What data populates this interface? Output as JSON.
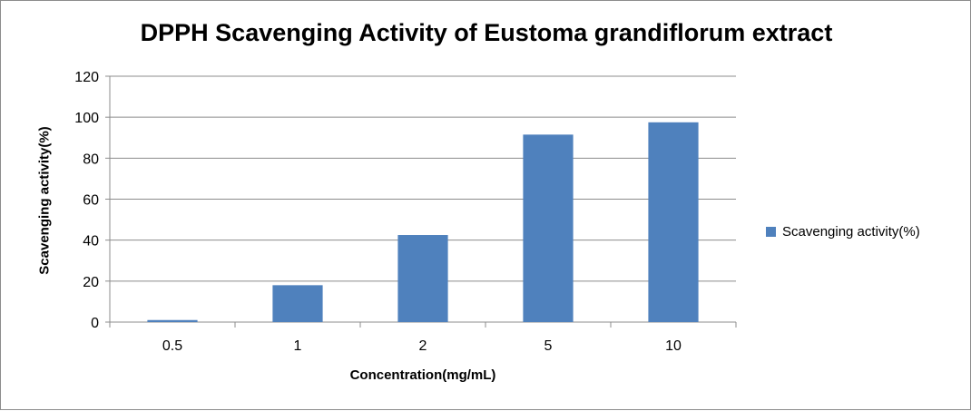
{
  "chart_data": {
    "type": "bar",
    "title": "DPPH Scavenging Activity of Eustoma grandiflorum extract",
    "xlabel": "Concentration(mg/mL)",
    "ylabel": "Scavenging activity(%)",
    "categories": [
      "0.5",
      "1",
      "2",
      "5",
      "10"
    ],
    "series": [
      {
        "name": "Scavenging activity(%)",
        "values": [
          1,
          18,
          42.5,
          91.5,
          97.5
        ]
      }
    ],
    "ylim": [
      0,
      120
    ],
    "yticks": [
      0,
      20,
      40,
      60,
      80,
      100,
      120
    ],
    "grid": true,
    "legend_position": "right",
    "colors": {
      "bar": "#4f81bd",
      "grid": "#8c8c8c",
      "axis": "#8c8c8c"
    }
  }
}
